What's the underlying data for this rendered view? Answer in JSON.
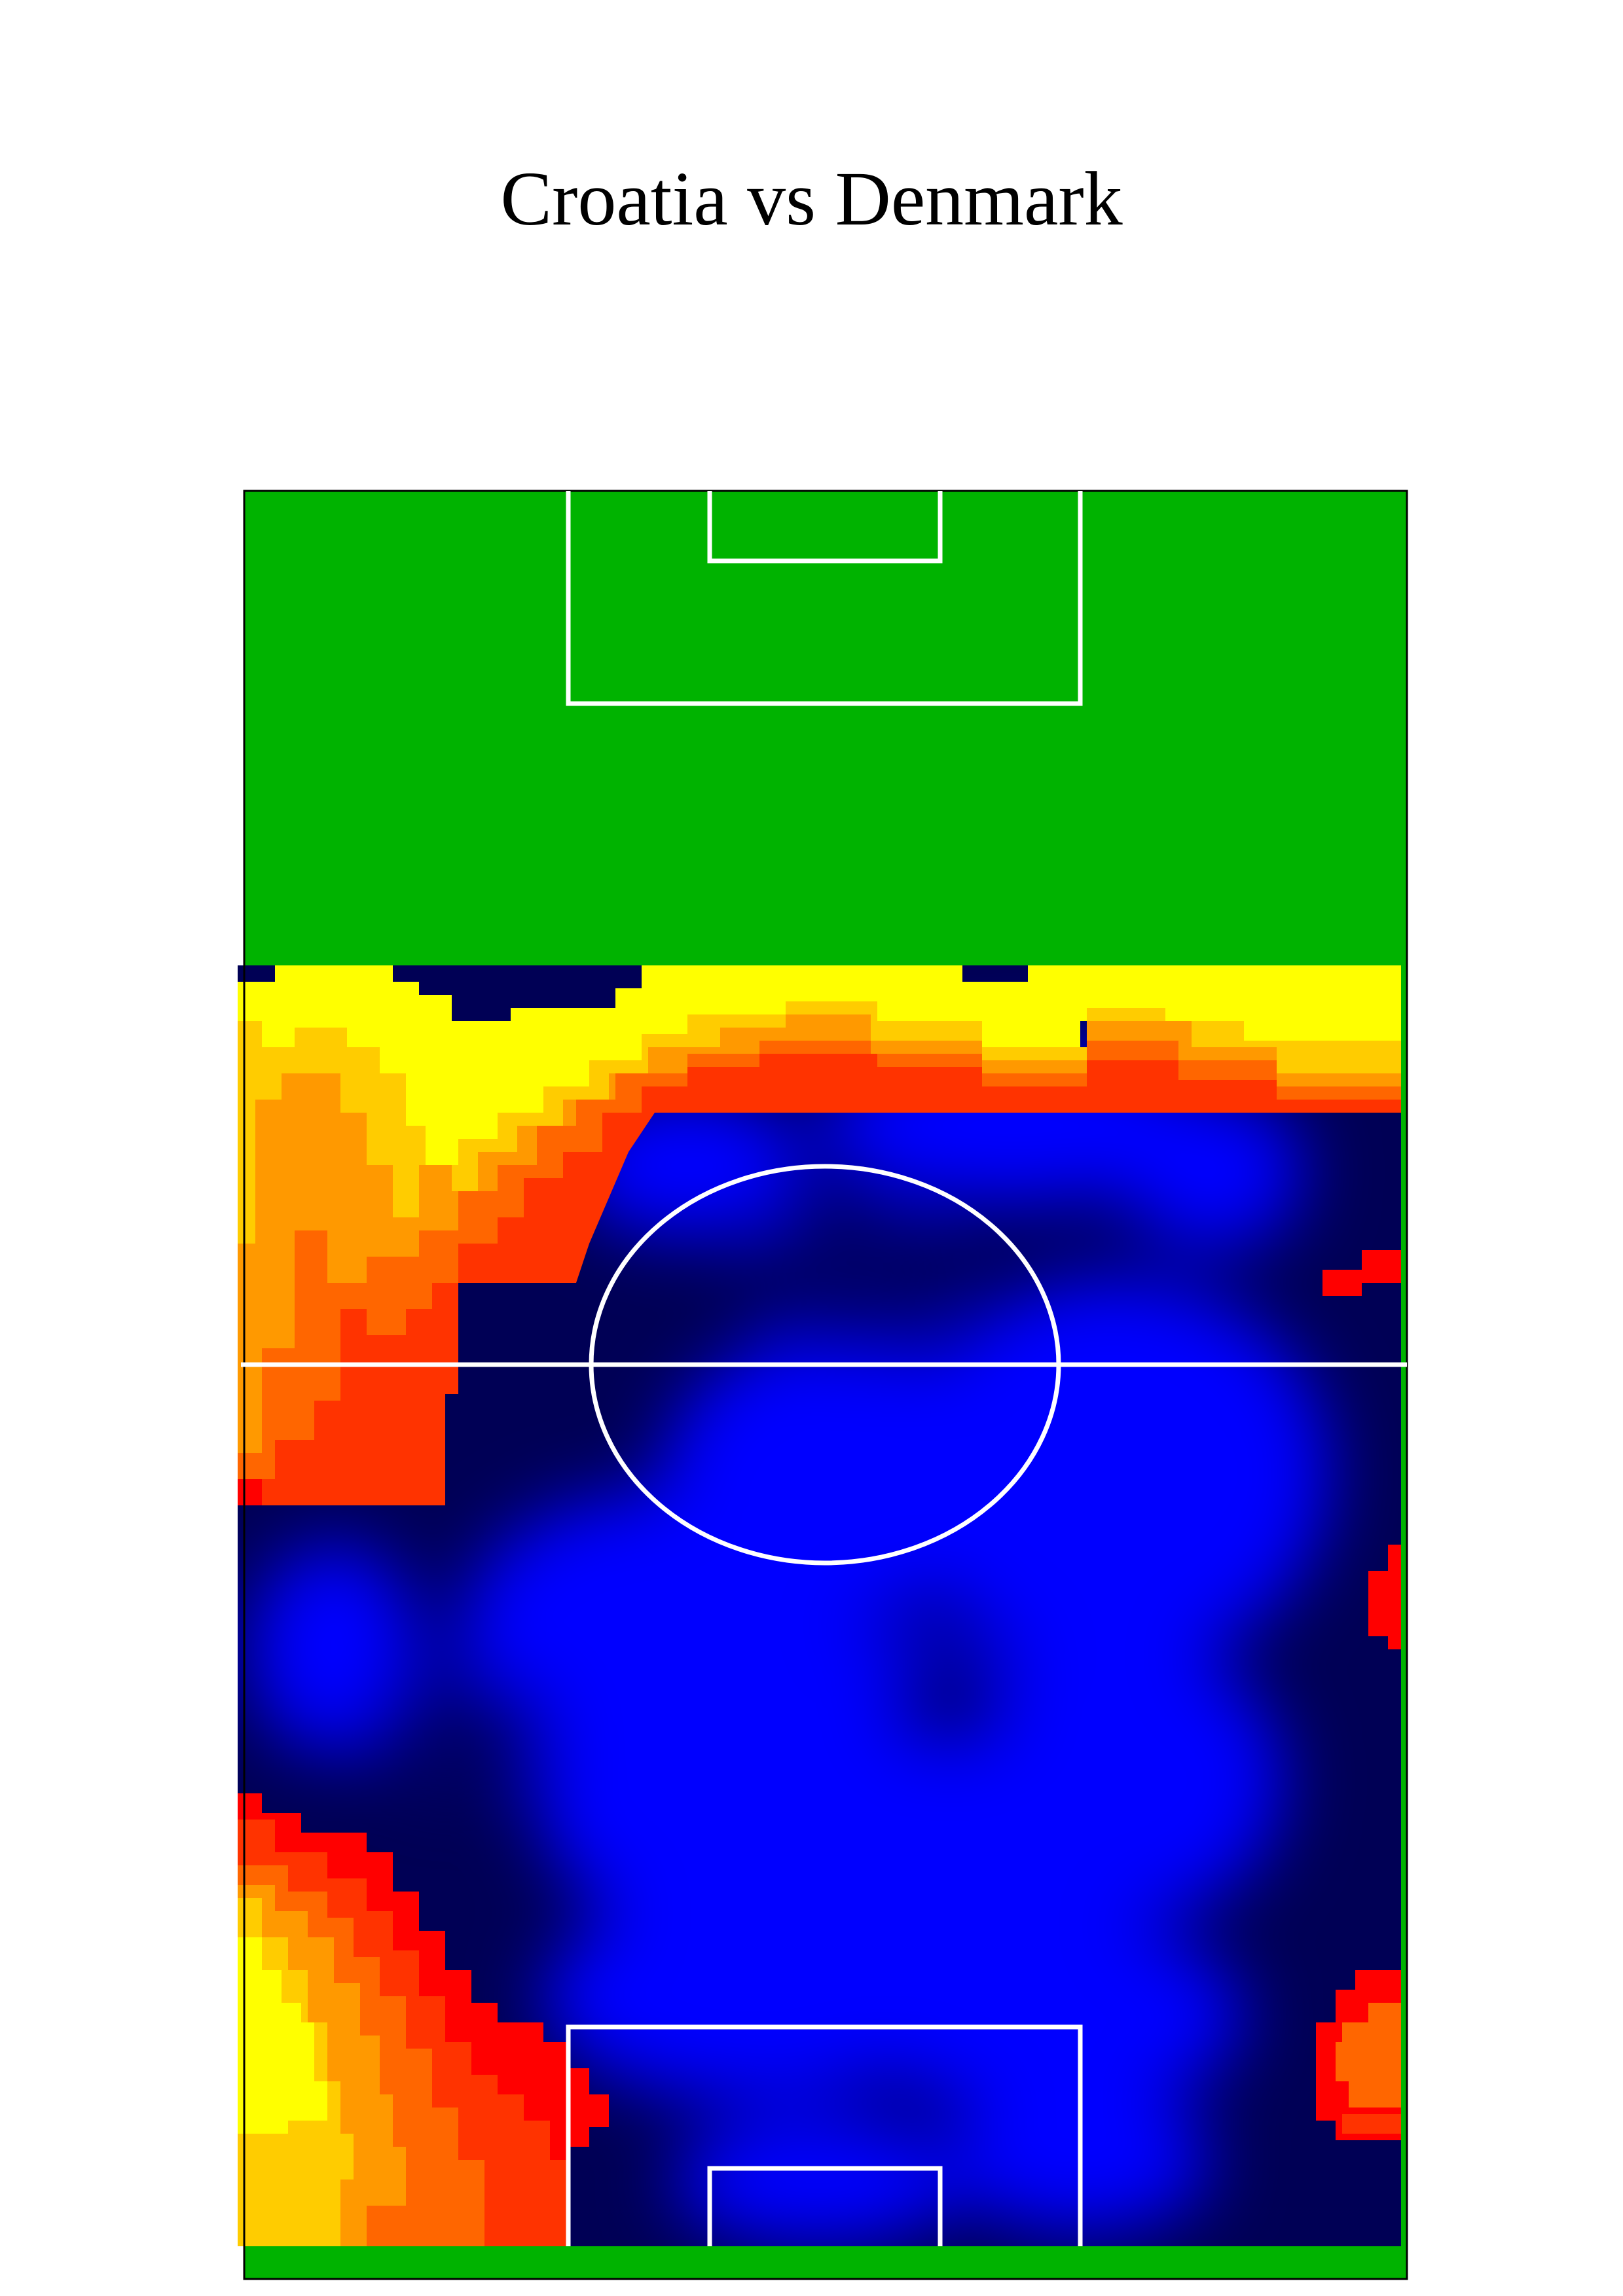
{
  "chart_data": {
    "type": "heatmap",
    "title": "Croatia vs Denmark",
    "subject": "football pitch heatmap (vertical orientation)",
    "colors": {
      "pitch_grass": "#00b300",
      "pitch_lines": "#ffffff",
      "colormap_low_to_high": [
        "#000050",
        "#0000ff",
        "#ff0000",
        "#ff6600",
        "#ffcc00",
        "#ffff00"
      ]
    },
    "heat_zones": [
      {
        "region": "center and attacking half (bottom)",
        "level": "low",
        "color": "blue"
      },
      {
        "region": "defensive band near halfway of top half (left flank)",
        "level": "high",
        "color": "yellow/orange"
      },
      {
        "region": "bottom-left corner (left flank, bottom)",
        "level": "high",
        "color": "yellow/orange"
      },
      {
        "region": "top band across width just below the green",
        "level": "high",
        "color": "yellow"
      },
      {
        "region": "small spot right touchline mid-pitch",
        "level": "medium",
        "color": "red"
      },
      {
        "region": "small spot right touchline near bottom penalty area",
        "level": "medium",
        "color": "orange/red"
      }
    ],
    "legend": "none",
    "grid": false
  }
}
